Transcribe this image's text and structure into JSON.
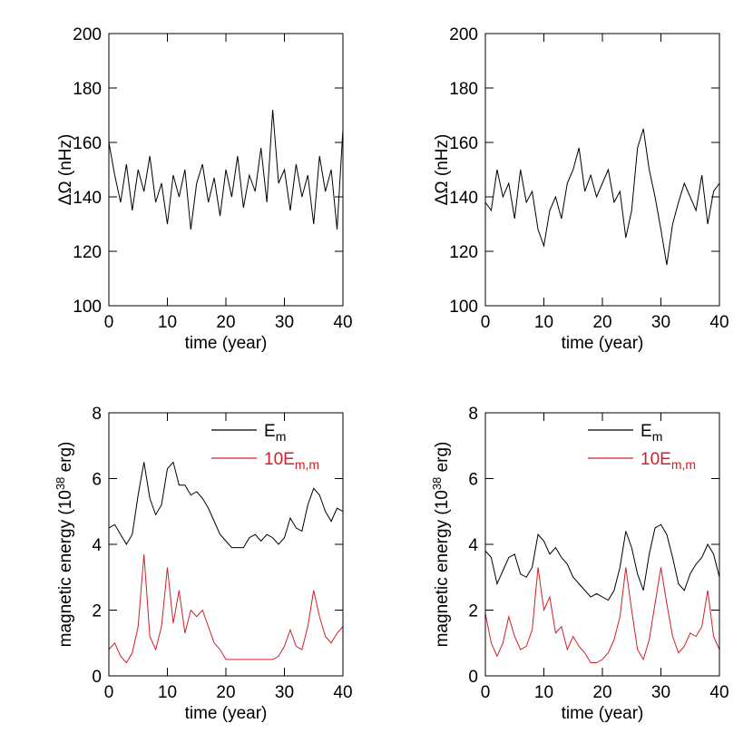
{
  "chart_data": [
    {
      "type": "line",
      "xlabel": "time (year)",
      "ylabel": {
        "text": "ΔΩ (nHz)"
      },
      "x": [
        0,
        1,
        2,
        3,
        4,
        5,
        6,
        7,
        8,
        9,
        10,
        11,
        12,
        13,
        14,
        15,
        16,
        17,
        18,
        19,
        20,
        21,
        22,
        23,
        24,
        25,
        26,
        27,
        28,
        29,
        30,
        31,
        32,
        33,
        34,
        35,
        36,
        37,
        38,
        39,
        40
      ],
      "xlim": [
        0,
        40
      ],
      "xticks": [
        0,
        10,
        20,
        30,
        40
      ],
      "ylim": [
        100,
        200
      ],
      "yticks": [
        100,
        120,
        140,
        160,
        180,
        200
      ],
      "series": [
        {
          "color": "#000000",
          "values": [
            160,
            148,
            138,
            152,
            135,
            150,
            142,
            155,
            138,
            145,
            130,
            148,
            140,
            150,
            128,
            145,
            152,
            138,
            147,
            133,
            150,
            140,
            155,
            136,
            148,
            142,
            158,
            138,
            172,
            145,
            150,
            135,
            152,
            140,
            148,
            130,
            155,
            142,
            150,
            128,
            165
          ]
        }
      ]
    },
    {
      "type": "line",
      "xlabel": "time (year)",
      "ylabel": {
        "text": "ΔΩ (nHz)"
      },
      "x": [
        0,
        1,
        2,
        3,
        4,
        5,
        6,
        7,
        8,
        9,
        10,
        11,
        12,
        13,
        14,
        15,
        16,
        17,
        18,
        19,
        20,
        21,
        22,
        23,
        24,
        25,
        26,
        27,
        28,
        29,
        30,
        31,
        32,
        33,
        34,
        35,
        36,
        37,
        38,
        39,
        40
      ],
      "xlim": [
        0,
        40
      ],
      "xticks": [
        0,
        10,
        20,
        30,
        40
      ],
      "ylim": [
        100,
        200
      ],
      "yticks": [
        100,
        120,
        140,
        160,
        180,
        200
      ],
      "series": [
        {
          "color": "#000000",
          "values": [
            138,
            135,
            150,
            140,
            145,
            132,
            150,
            138,
            142,
            128,
            122,
            135,
            140,
            132,
            145,
            150,
            158,
            142,
            148,
            140,
            145,
            150,
            138,
            142,
            125,
            135,
            158,
            165,
            150,
            140,
            128,
            115,
            130,
            138,
            145,
            140,
            135,
            148,
            130,
            142,
            145
          ]
        }
      ]
    },
    {
      "type": "line",
      "xlabel": "time (year)",
      "ylabel": {
        "text": "magnetic energy (10",
        "sup": "38",
        "tail": " erg)"
      },
      "legend": "top-right",
      "x": [
        0,
        1,
        2,
        3,
        4,
        5,
        6,
        7,
        8,
        9,
        10,
        11,
        12,
        13,
        14,
        15,
        16,
        17,
        18,
        19,
        20,
        21,
        22,
        23,
        24,
        25,
        26,
        27,
        28,
        29,
        30,
        31,
        32,
        33,
        34,
        35,
        36,
        37,
        38,
        39,
        40
      ],
      "xlim": [
        0,
        40
      ],
      "xticks": [
        0,
        10,
        20,
        30,
        40
      ],
      "ylim": [
        0,
        8
      ],
      "yticks": [
        0,
        2,
        4,
        6,
        8
      ],
      "series": [
        {
          "name": "E",
          "subscript": "m",
          "color": "#000000",
          "values": [
            4.5,
            4.6,
            4.3,
            4.0,
            4.3,
            5.5,
            6.5,
            5.4,
            4.9,
            5.2,
            6.3,
            6.5,
            5.8,
            5.8,
            5.5,
            5.6,
            5.4,
            5.1,
            4.7,
            4.3,
            4.1,
            3.9,
            3.9,
            3.9,
            4.2,
            4.3,
            4.1,
            4.3,
            4.2,
            4.0,
            4.2,
            4.8,
            4.5,
            4.4,
            5.2,
            5.7,
            5.5,
            5.0,
            4.7,
            5.1,
            5.0
          ]
        },
        {
          "name": "10E",
          "subscript": "m,m",
          "color": "#d0202a",
          "values": [
            0.8,
            1.0,
            0.6,
            0.4,
            0.7,
            1.5,
            3.7,
            1.2,
            0.8,
            1.5,
            3.3,
            1.6,
            2.6,
            1.3,
            2.0,
            1.8,
            2.0,
            1.5,
            1.0,
            0.8,
            0.5,
            0.5,
            0.5,
            0.5,
            0.5,
            0.5,
            0.5,
            0.5,
            0.5,
            0.6,
            0.9,
            1.4,
            0.9,
            0.8,
            1.5,
            2.6,
            1.8,
            1.2,
            1.0,
            1.3,
            1.5
          ]
        }
      ]
    },
    {
      "type": "line",
      "xlabel": "time (year)",
      "ylabel": {
        "text": "magnetic energy (10",
        "sup": "38",
        "tail": " erg)"
      },
      "legend": "top-right",
      "x": [
        0,
        1,
        2,
        3,
        4,
        5,
        6,
        7,
        8,
        9,
        10,
        11,
        12,
        13,
        14,
        15,
        16,
        17,
        18,
        19,
        20,
        21,
        22,
        23,
        24,
        25,
        26,
        27,
        28,
        29,
        30,
        31,
        32,
        33,
        34,
        35,
        36,
        37,
        38,
        39,
        40
      ],
      "xlim": [
        0,
        40
      ],
      "xticks": [
        0,
        10,
        20,
        30,
        40
      ],
      "ylim": [
        0,
        8
      ],
      "yticks": [
        0,
        2,
        4,
        6,
        8
      ],
      "series": [
        {
          "name": "E",
          "subscript": "m",
          "color": "#000000",
          "values": [
            3.8,
            3.6,
            2.8,
            3.2,
            3.6,
            3.7,
            3.1,
            3.0,
            3.3,
            4.3,
            4.1,
            3.7,
            3.9,
            3.6,
            3.4,
            3.0,
            2.8,
            2.6,
            2.4,
            2.5,
            2.4,
            2.3,
            2.6,
            3.3,
            4.4,
            3.9,
            3.1,
            2.6,
            3.7,
            4.5,
            4.6,
            4.3,
            3.6,
            2.8,
            2.6,
            3.1,
            3.4,
            3.6,
            4.0,
            3.7,
            3.0
          ]
        },
        {
          "name": "10E",
          "subscript": "m,m",
          "color": "#d0202a",
          "values": [
            1.9,
            1.0,
            0.6,
            1.0,
            1.8,
            1.2,
            0.8,
            0.9,
            1.4,
            3.3,
            2.0,
            2.4,
            1.3,
            1.5,
            0.8,
            1.2,
            0.9,
            0.7,
            0.4,
            0.4,
            0.5,
            0.7,
            1.1,
            1.8,
            3.3,
            2.0,
            0.8,
            0.5,
            1.1,
            2.2,
            3.3,
            2.2,
            1.2,
            0.7,
            0.9,
            1.3,
            1.2,
            1.5,
            2.6,
            1.2,
            0.8
          ]
        }
      ]
    }
  ]
}
